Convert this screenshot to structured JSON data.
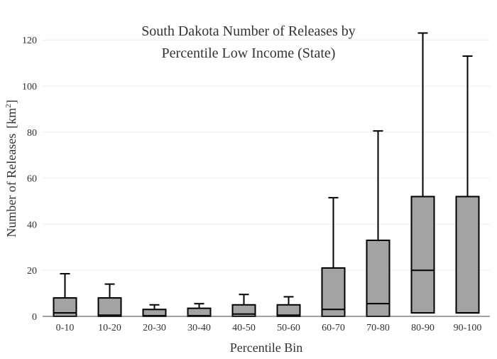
{
  "chart_data": {
    "type": "box",
    "title_lines": [
      "South Dakota Number of Releases by",
      "Percentile Low Income (State)"
    ],
    "xlabel": "Percentile Bin",
    "ylabel": "Number of Releases",
    "ylabel_unit_base": "[km",
    "ylabel_unit_sup": "2",
    "ylabel_unit_end": "]",
    "ylim": [
      0,
      125
    ],
    "yticks": [
      0,
      20,
      40,
      60,
      80,
      100,
      120
    ],
    "grid": true,
    "categories": [
      "0-10",
      "10-20",
      "20-30",
      "30-40",
      "40-50",
      "50-60",
      "60-70",
      "70-80",
      "80-90",
      "90-100"
    ],
    "boxes": [
      {
        "category": "0-10",
        "lower_whisker": 0,
        "q1": 0,
        "median": 1.5,
        "q3": 8,
        "upper_whisker": 18.5
      },
      {
        "category": "10-20",
        "lower_whisker": 0,
        "q1": 0,
        "median": 0.5,
        "q3": 8,
        "upper_whisker": 14
      },
      {
        "category": "20-30",
        "lower_whisker": 0,
        "q1": 0,
        "median": 0.3,
        "q3": 3,
        "upper_whisker": 5
      },
      {
        "category": "30-40",
        "lower_whisker": 0,
        "q1": 0,
        "median": 0.3,
        "q3": 3.5,
        "upper_whisker": 5.5
      },
      {
        "category": "40-50",
        "lower_whisker": 0,
        "q1": 0,
        "median": 1,
        "q3": 5,
        "upper_whisker": 9.5
      },
      {
        "category": "50-60",
        "lower_whisker": 0,
        "q1": 0,
        "median": 0.5,
        "q3": 5,
        "upper_whisker": 8.5
      },
      {
        "category": "60-70",
        "lower_whisker": 0,
        "q1": 0,
        "median": 3,
        "q3": 21,
        "upper_whisker": 51.5
      },
      {
        "category": "70-80",
        "lower_whisker": 0,
        "q1": 0,
        "median": 5.5,
        "q3": 33,
        "upper_whisker": 80.5
      },
      {
        "category": "80-90",
        "lower_whisker": 1.5,
        "q1": 1.5,
        "median": 20,
        "q3": 52,
        "upper_whisker": 123
      },
      {
        "category": "90-100",
        "lower_whisker": 1.5,
        "q1": 1.5,
        "median": 1.5,
        "q3": 52,
        "upper_whisker": 113
      }
    ],
    "colors": {
      "box_fill": "#a3a3a3",
      "stroke": "#000000",
      "grid": "#eeeeee",
      "axis": "#444444",
      "text": "#333333"
    }
  }
}
